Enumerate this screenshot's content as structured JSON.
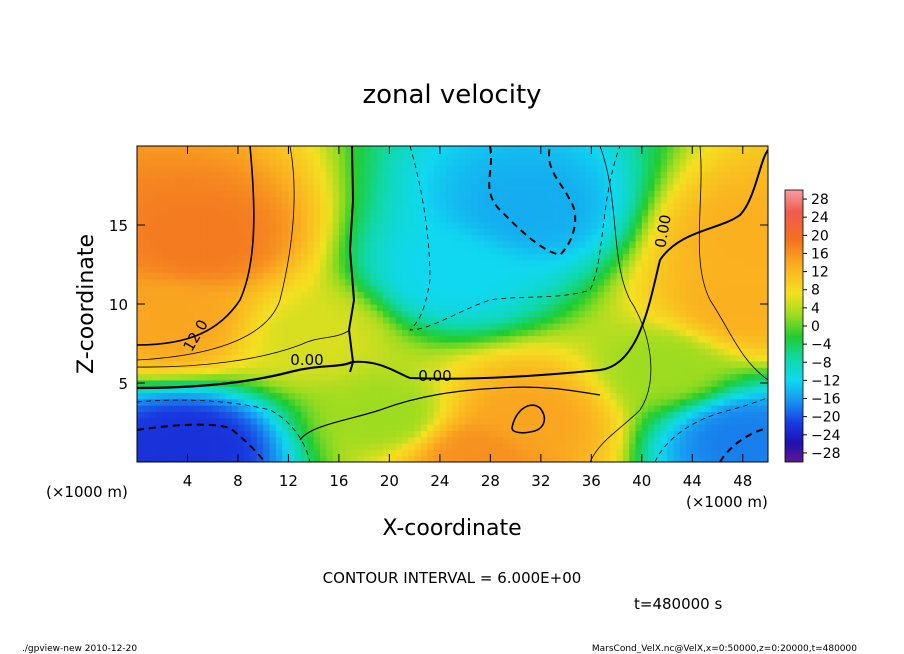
{
  "chart_data": {
    "type": "heatmap",
    "title": "zonal velocity",
    "xlabel": "X-coordinate",
    "ylabel": "Z-coordinate",
    "xunit_left": "(×1000 m)",
    "xunit_right": "(×1000 m)",
    "xlim": [
      0,
      50
    ],
    "ylim": [
      0,
      20
    ],
    "xticks": [
      4,
      8,
      12,
      16,
      20,
      24,
      28,
      32,
      36,
      40,
      44,
      48
    ],
    "yticks": [
      5,
      10,
      15
    ],
    "colorbar": {
      "ticks": [
        28,
        24,
        20,
        16,
        12,
        8,
        4,
        0,
        -4,
        -8,
        -12,
        -16,
        -20,
        -24,
        -28
      ],
      "tick_labels": [
        "28",
        "24",
        "20",
        "16",
        "12",
        "8",
        "4",
        "0",
        "−4",
        "−8",
        "−12",
        "−16",
        "−20",
        "−24",
        "−28"
      ],
      "range": [
        -30,
        30
      ]
    },
    "contour_labels": [
      "12.0",
      "0.00",
      "0.00",
      "0.00",
      "0.00"
    ],
    "contour_interval_text": "CONTOUR INTERVAL = 6.000E+00",
    "time_text": "t=480000 s",
    "features": [
      {
        "x": 5,
        "z": 14,
        "value": 17
      },
      {
        "x": 3,
        "z": 9,
        "value": 13
      },
      {
        "x": 49,
        "z": 14,
        "value": 12
      },
      {
        "x": 48,
        "z": 10,
        "value": 12
      },
      {
        "x": 31,
        "z": 16,
        "value": -11
      },
      {
        "x": 25,
        "z": 12,
        "value": -8
      },
      {
        "x": 4,
        "z": 1,
        "value": -19
      },
      {
        "x": 48,
        "z": 1.5,
        "value": -14
      },
      {
        "x": 31,
        "z": 2.8,
        "value": 13
      },
      {
        "x": 27,
        "z": 0.5,
        "value": 15
      },
      {
        "x": 20,
        "z": 3,
        "value": 3
      },
      {
        "x": 14,
        "z": 8,
        "value": 5
      },
      {
        "x": 42,
        "z": 6,
        "value": 3
      }
    ]
  },
  "footer": {
    "left": "./gpview-new  2010-12-20",
    "right": "MarsCond_VelX.nc@VelX,x=0:50000,z=0:20000,t=480000"
  }
}
